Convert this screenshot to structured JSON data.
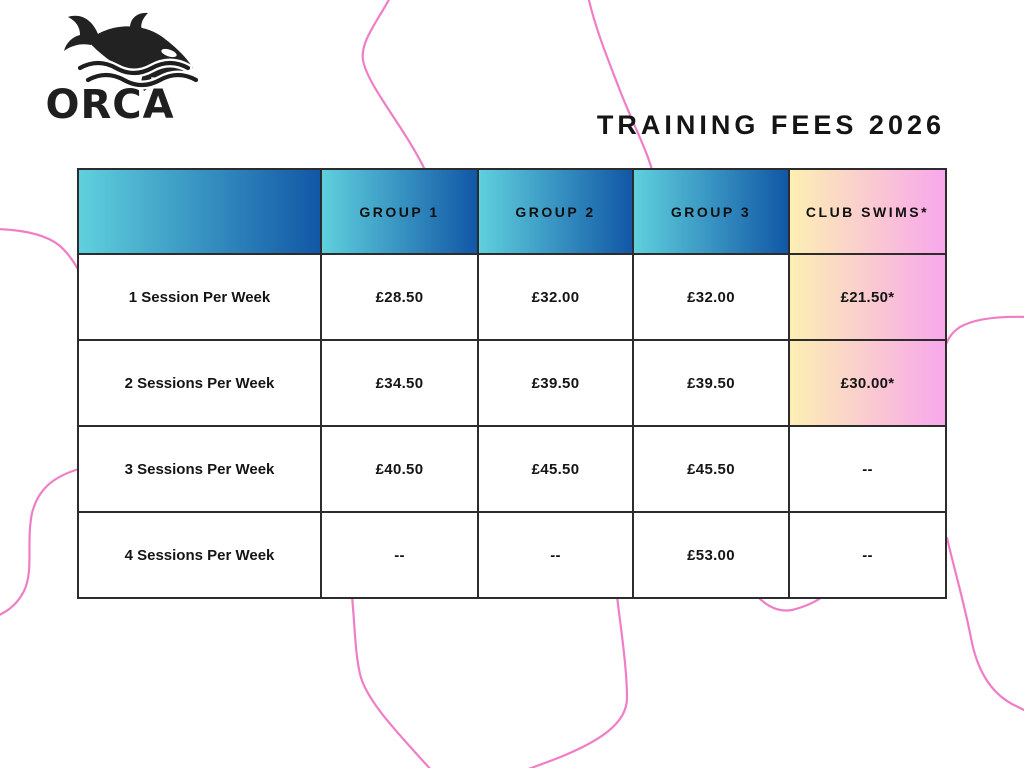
{
  "title": "TRAINING FEES 2026",
  "logo": {
    "name": "ORCA"
  },
  "colors": {
    "header_gradient_start": "#5fd0dd",
    "header_gradient_end": "#1157a6",
    "club_gradient_start": "#fcefb3",
    "club_gradient_end": "#f8a7ec",
    "squiggle_pink": "#ef7ec6",
    "border": "#2c2c2c"
  },
  "table": {
    "columns": [
      {
        "label": "",
        "style": "blue"
      },
      {
        "label": "GROUP 1",
        "style": "blue"
      },
      {
        "label": "GROUP 2",
        "style": "blue"
      },
      {
        "label": "GROUP 3",
        "style": "blue"
      },
      {
        "label": "CLUB SWIMS*",
        "style": "pink"
      }
    ],
    "rows": [
      {
        "label": "1 Session Per Week",
        "values": [
          "£28.50",
          "£32.00",
          "£32.00",
          "£21.50*"
        ],
        "club_highlight": true
      },
      {
        "label": "2 Sessions Per Week",
        "values": [
          "£34.50",
          "£39.50",
          "£39.50",
          "£30.00*"
        ],
        "club_highlight": true
      },
      {
        "label": "3 Sessions Per Week",
        "values": [
          "£40.50",
          "£45.50",
          "£45.50",
          "--"
        ],
        "club_highlight": false
      },
      {
        "label": "4 Sessions Per Week",
        "values": [
          "--",
          "--",
          "£53.00",
          "--"
        ],
        "club_highlight": false
      }
    ]
  }
}
